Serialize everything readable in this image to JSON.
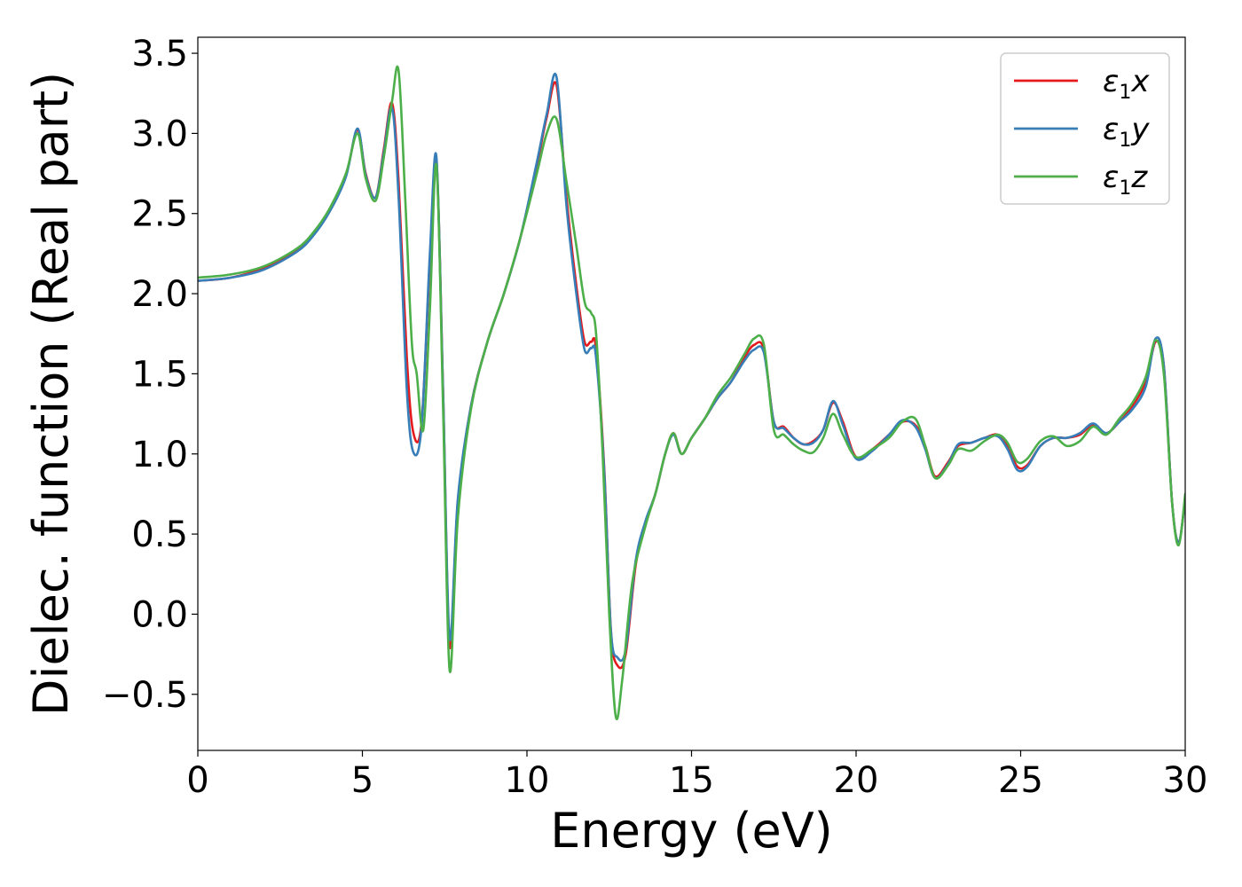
{
  "chart_data": {
    "type": "line",
    "title": "",
    "xlabel": "Energy (eV)",
    "ylabel": "Dielec. function (Real part)",
    "xlim": [
      0,
      30
    ],
    "ylim": [
      -0.85,
      3.6
    ],
    "xticks": [
      0,
      5,
      10,
      15,
      20,
      25,
      30
    ],
    "xtick_labels": [
      "0",
      "5",
      "10",
      "15",
      "20",
      "25",
      "30"
    ],
    "yticks": [
      -0.5,
      0.0,
      0.5,
      1.0,
      1.5,
      2.0,
      2.5,
      3.0,
      3.5
    ],
    "ytick_labels": [
      "−0.5",
      "0.0",
      "0.5",
      "1.0",
      "1.5",
      "2.0",
      "2.5",
      "3.0",
      "3.5"
    ],
    "grid": false,
    "legend_position": "top-right",
    "series": [
      {
        "name": "ε₁x",
        "legend_base": "ε",
        "legend_sub": "1",
        "legend_var": "x",
        "color": "#e41a1c",
        "x": [
          0,
          1,
          2,
          3,
          3.5,
          4,
          4.5,
          4.85,
          5.1,
          5.4,
          5.65,
          5.9,
          6.1,
          6.35,
          6.55,
          6.8,
          7.05,
          7.25,
          7.45,
          7.65,
          7.9,
          8.3,
          8.8,
          9.3,
          9.8,
          10.3,
          10.6,
          10.9,
          11.2,
          11.5,
          11.75,
          11.95,
          12.1,
          12.35,
          12.55,
          12.75,
          13.0,
          13.3,
          13.6,
          13.9,
          14.2,
          14.45,
          14.7,
          15.0,
          15.4,
          15.8,
          16.2,
          16.6,
          16.9,
          17.2,
          17.5,
          17.8,
          18.1,
          18.4,
          18.7,
          19.0,
          19.3,
          19.6,
          20.0,
          20.5,
          21.0,
          21.4,
          21.8,
          22.1,
          22.4,
          22.8,
          23.1,
          23.5,
          23.9,
          24.3,
          24.6,
          24.9,
          25.2,
          25.6,
          26.0,
          26.4,
          26.8,
          27.2,
          27.6,
          28.0,
          28.4,
          28.8,
          29.1,
          29.35,
          29.6,
          29.8,
          30.0
        ],
        "y": [
          2.08,
          2.1,
          2.16,
          2.27,
          2.37,
          2.52,
          2.74,
          3.02,
          2.75,
          2.6,
          2.9,
          3.19,
          2.7,
          1.6,
          1.13,
          1.2,
          2.2,
          2.83,
          1.4,
          -0.2,
          0.7,
          1.3,
          1.7,
          2.0,
          2.35,
          2.8,
          3.1,
          3.3,
          2.6,
          2.05,
          1.7,
          1.7,
          1.65,
          0.9,
          -0.1,
          -0.32,
          -0.25,
          0.3,
          0.57,
          0.75,
          1.0,
          1.13,
          1.0,
          1.1,
          1.22,
          1.35,
          1.45,
          1.6,
          1.68,
          1.65,
          1.2,
          1.17,
          1.1,
          1.06,
          1.08,
          1.15,
          1.32,
          1.2,
          0.98,
          1.03,
          1.12,
          1.2,
          1.18,
          1.05,
          0.86,
          0.95,
          1.05,
          1.07,
          1.1,
          1.12,
          1.05,
          0.92,
          0.93,
          1.05,
          1.1,
          1.1,
          1.12,
          1.18,
          1.13,
          1.2,
          1.3,
          1.45,
          1.7,
          1.55,
          0.7,
          0.45,
          0.72
        ]
      },
      {
        "name": "ε₁y",
        "legend_base": "ε",
        "legend_sub": "1",
        "legend_var": "y",
        "color": "#377eb8",
        "x": [
          0,
          1,
          2,
          3,
          3.5,
          4,
          4.5,
          4.85,
          5.1,
          5.4,
          5.65,
          5.9,
          6.1,
          6.35,
          6.55,
          6.8,
          7.05,
          7.25,
          7.45,
          7.65,
          7.9,
          8.3,
          8.8,
          9.3,
          9.8,
          10.3,
          10.6,
          10.9,
          11.2,
          11.5,
          11.75,
          11.95,
          12.1,
          12.35,
          12.55,
          12.75,
          13.0,
          13.3,
          13.6,
          13.9,
          14.2,
          14.45,
          14.7,
          15.0,
          15.4,
          15.8,
          16.2,
          16.6,
          16.9,
          17.2,
          17.5,
          17.8,
          18.1,
          18.4,
          18.7,
          19.0,
          19.3,
          19.6,
          20.0,
          20.5,
          21.0,
          21.4,
          21.8,
          22.1,
          22.4,
          22.8,
          23.1,
          23.5,
          23.9,
          24.3,
          24.6,
          24.9,
          25.2,
          25.6,
          26.0,
          26.4,
          26.8,
          27.2,
          27.6,
          28.0,
          28.4,
          28.8,
          29.1,
          29.35,
          29.6,
          29.8,
          30.0
        ],
        "y": [
          2.08,
          2.1,
          2.15,
          2.26,
          2.36,
          2.51,
          2.73,
          3.03,
          2.74,
          2.6,
          2.88,
          3.16,
          2.6,
          1.4,
          1.01,
          1.18,
          2.25,
          2.85,
          1.4,
          -0.15,
          0.72,
          1.3,
          1.7,
          2.0,
          2.35,
          2.82,
          3.12,
          3.35,
          2.55,
          2.0,
          1.65,
          1.66,
          1.6,
          0.88,
          -0.1,
          -0.27,
          -0.22,
          0.33,
          0.58,
          0.75,
          1.0,
          1.12,
          1.0,
          1.1,
          1.22,
          1.35,
          1.45,
          1.58,
          1.65,
          1.63,
          1.2,
          1.16,
          1.1,
          1.06,
          1.07,
          1.15,
          1.33,
          1.18,
          0.97,
          1.02,
          1.12,
          1.21,
          1.17,
          1.03,
          0.85,
          0.94,
          1.06,
          1.07,
          1.1,
          1.11,
          1.03,
          0.9,
          0.92,
          1.05,
          1.1,
          1.1,
          1.13,
          1.19,
          1.13,
          1.2,
          1.28,
          1.42,
          1.72,
          1.55,
          0.7,
          0.45,
          0.72
        ]
      },
      {
        "name": "ε₁z",
        "legend_base": "ε",
        "legend_sub": "1",
        "legend_var": "z",
        "color": "#4daf4a",
        "x": [
          0,
          1,
          2,
          3,
          3.5,
          4,
          4.5,
          4.85,
          5.1,
          5.4,
          5.65,
          5.9,
          6.1,
          6.3,
          6.5,
          6.65,
          6.85,
          7.05,
          7.25,
          7.45,
          7.65,
          7.9,
          8.3,
          8.8,
          9.3,
          9.8,
          10.3,
          10.6,
          10.9,
          11.2,
          11.5,
          11.75,
          11.95,
          12.1,
          12.3,
          12.5,
          12.7,
          12.9,
          13.2,
          13.6,
          13.9,
          14.2,
          14.45,
          14.7,
          15.0,
          15.4,
          15.8,
          16.2,
          16.6,
          16.9,
          17.2,
          17.5,
          17.8,
          18.1,
          18.4,
          18.7,
          19.0,
          19.3,
          19.6,
          20.0,
          20.5,
          21.0,
          21.4,
          21.8,
          22.1,
          22.4,
          22.8,
          23.1,
          23.5,
          23.9,
          24.3,
          24.6,
          24.9,
          25.2,
          25.6,
          26.0,
          26.4,
          26.8,
          27.2,
          27.6,
          28.0,
          28.4,
          28.8,
          29.1,
          29.35,
          29.6,
          29.8,
          30.0
        ],
        "y": [
          2.1,
          2.12,
          2.17,
          2.28,
          2.38,
          2.53,
          2.75,
          3.0,
          2.72,
          2.58,
          2.85,
          3.2,
          3.39,
          2.6,
          1.7,
          1.5,
          1.15,
          1.9,
          2.8,
          1.3,
          -0.35,
          0.6,
          1.28,
          1.7,
          2.0,
          2.35,
          2.75,
          3.0,
          3.09,
          2.7,
          2.3,
          1.95,
          1.88,
          1.75,
          1.0,
          0.0,
          -0.64,
          -0.4,
          0.2,
          0.55,
          0.75,
          1.0,
          1.13,
          1.0,
          1.1,
          1.22,
          1.37,
          1.48,
          1.62,
          1.72,
          1.68,
          1.15,
          1.12,
          1.06,
          1.02,
          1.01,
          1.1,
          1.25,
          1.12,
          0.98,
          1.03,
          1.1,
          1.2,
          1.22,
          1.05,
          0.85,
          0.93,
          1.03,
          1.02,
          1.08,
          1.12,
          1.07,
          0.95,
          0.97,
          1.08,
          1.11,
          1.05,
          1.08,
          1.17,
          1.12,
          1.22,
          1.32,
          1.48,
          1.71,
          1.5,
          0.7,
          0.43,
          0.75
        ]
      }
    ]
  }
}
